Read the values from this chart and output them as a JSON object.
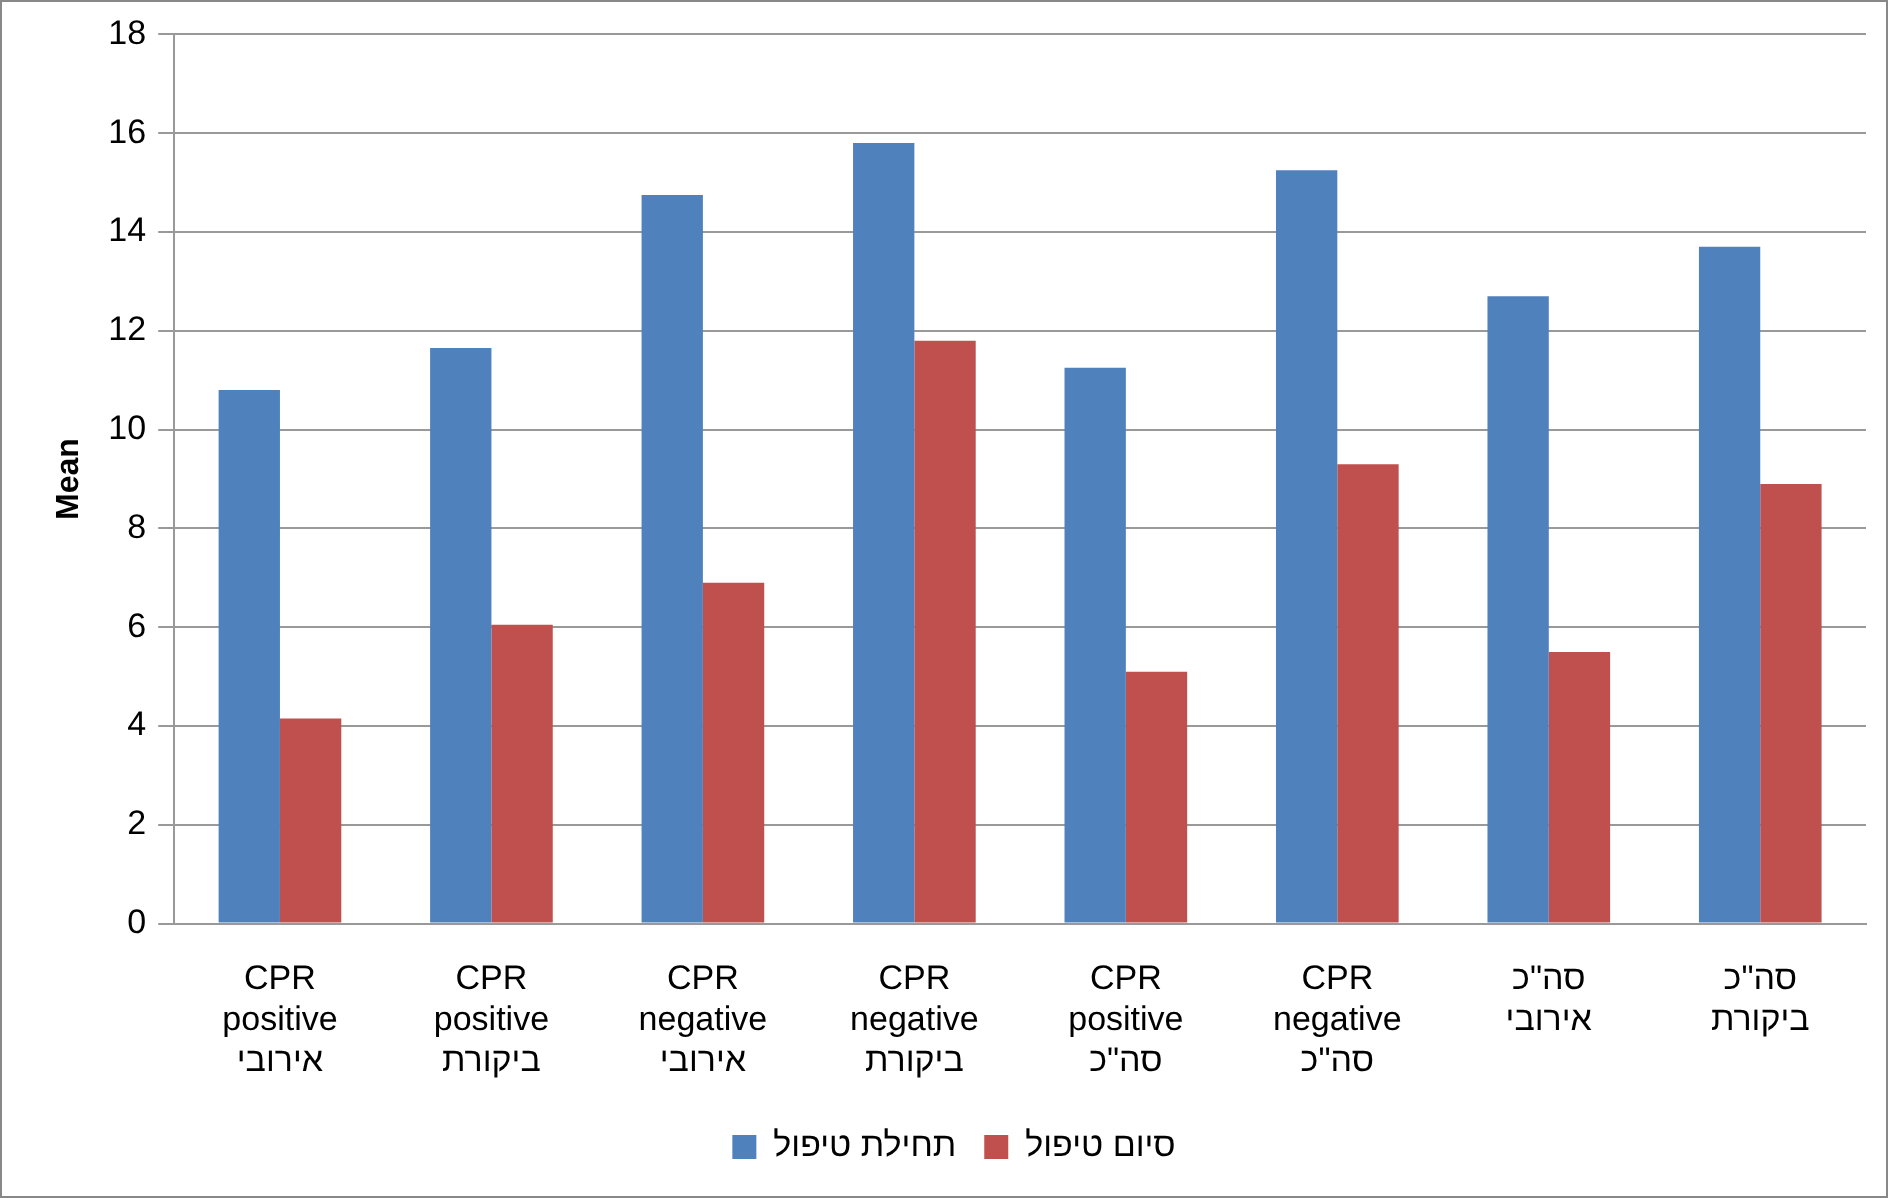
{
  "chart_data": {
    "type": "bar",
    "ylabel": "Mean",
    "categories": [
      "CPR\npositive\nאירובי",
      "CPR\npositive\nביקורת",
      "CPR\nnegative\nאירובי",
      "CPR\nnegative\nביקורת",
      "CPR\npositive\nסה\"כ",
      "CPR\nnegative\nסה\"כ",
      "סה\"כ\nאירובי",
      "סה\"כ\nביקורת"
    ],
    "series": [
      {
        "name": "תחילת טיפול",
        "color": "#4f81bd",
        "values": [
          10.8,
          11.65,
          14.75,
          15.8,
          11.25,
          15.25,
          12.7,
          13.7
        ]
      },
      {
        "name": "סיום טיפול",
        "color": "#c0504d",
        "values": [
          4.15,
          6.05,
          6.9,
          11.8,
          5.1,
          9.3,
          5.5,
          8.9
        ]
      }
    ],
    "ylim": [
      0,
      18
    ],
    "yticks": [
      0,
      2,
      4,
      6,
      8,
      10,
      12,
      14,
      16,
      18
    ],
    "grid": "y",
    "legend": "bottom"
  }
}
